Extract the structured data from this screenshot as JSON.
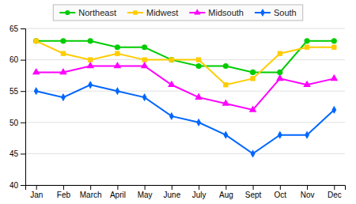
{
  "chart_data": {
    "type": "line",
    "categories": [
      "Jan",
      "Feb",
      "March",
      "April",
      "May",
      "June",
      "July",
      "Aug",
      "Sept",
      "Oct",
      "Nov",
      "Dec"
    ],
    "series": [
      {
        "name": "Northeast",
        "color": "#00cc00",
        "marker": "circle",
        "values": [
          63,
          63,
          63,
          62,
          62,
          60,
          59,
          59,
          58,
          58,
          63,
          63
        ]
      },
      {
        "name": "Midwest",
        "color": "#ffcc00",
        "marker": "square",
        "values": [
          63,
          61,
          60,
          61,
          60,
          60,
          60,
          56,
          57,
          61,
          62,
          62
        ]
      },
      {
        "name": "Midsouth",
        "color": "#ff00ff",
        "marker": "triangle",
        "values": [
          58,
          58,
          59,
          59,
          59,
          56,
          54,
          53,
          52,
          57,
          56,
          57
        ]
      },
      {
        "name": "South",
        "color": "#0066ff",
        "marker": "diamond",
        "values": [
          55,
          54,
          56,
          55,
          54,
          51,
          50,
          48,
          45,
          48,
          48,
          52
        ]
      }
    ],
    "ylim": [
      40,
      65
    ],
    "yticks": [
      40,
      45,
      50,
      55,
      60,
      65
    ],
    "grid": true,
    "legend": "top"
  }
}
